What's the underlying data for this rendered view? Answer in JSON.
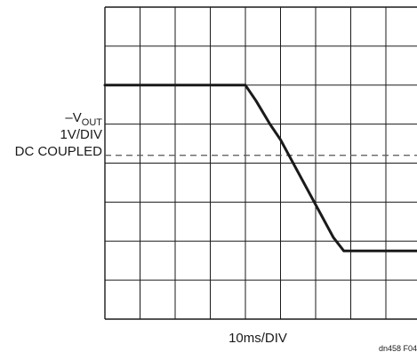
{
  "chart_data": {
    "type": "line",
    "ylabel": {
      "symbol": "–V",
      "subscript": "OUT",
      "scale": "1V/DIV",
      "coupling": "DC COUPLED"
    },
    "xlabel": "10ms/DIV",
    "figure_id": "dn458 F04",
    "x_divisions": 10,
    "y_divisions": 8,
    "grid": true,
    "series": [
      {
        "values_x": [
          0,
          4.0,
          4.3,
          4.7,
          5.0,
          6.2,
          6.5,
          6.8,
          10
        ],
        "values_y": [
          6.0,
          6.0,
          5.6,
          5.0,
          4.6,
          2.6,
          2.1,
          1.75,
          1.75
        ]
      }
    ],
    "reference_line": {
      "y": 4.2,
      "style": "dashed"
    },
    "colors": {
      "trace": "#1a1a1a",
      "grid": "#1a1a1a",
      "reference": "#555555"
    }
  }
}
